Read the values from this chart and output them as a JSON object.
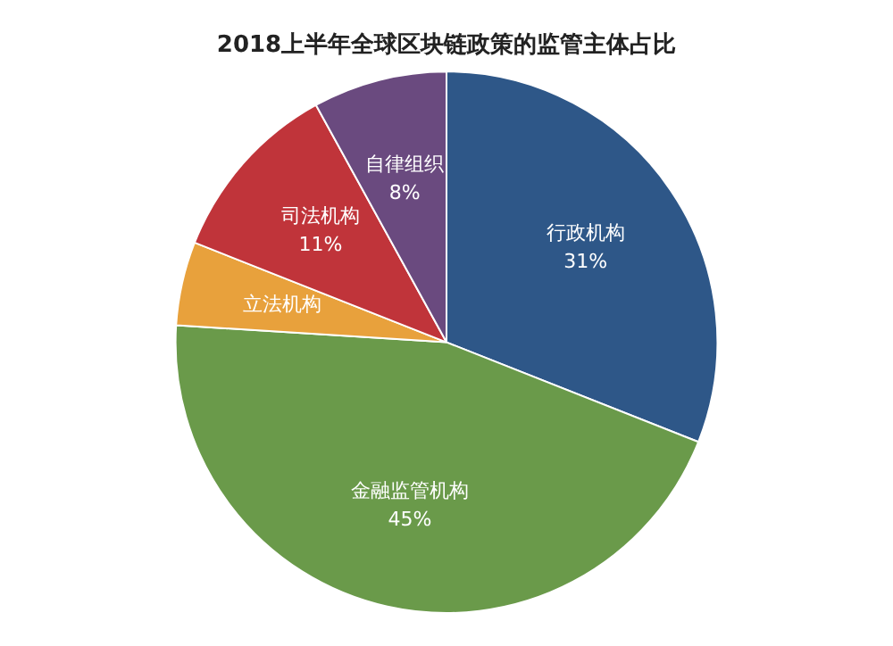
{
  "chart_data": {
    "type": "pie",
    "title": "2018上半年全球区块链政策的监管主体占比",
    "categories": [
      "行政机构",
      "金融监管机构",
      "立法机构",
      "司法机构",
      "自律组织"
    ],
    "values": [
      31,
      45,
      5,
      11,
      8
    ],
    "colors": [
      "#2e5788",
      "#6a9a4a",
      "#e8a13c",
      "#c0343a",
      "#6a4a7f"
    ],
    "value_labels": [
      "31%",
      "45%",
      null,
      "11%",
      "8%"
    ],
    "legend": false
  }
}
